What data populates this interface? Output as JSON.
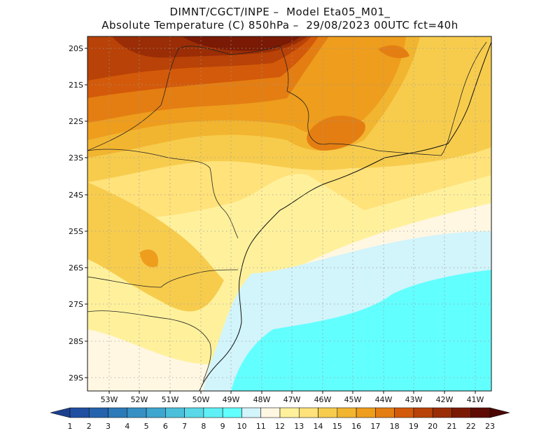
{
  "title": {
    "line1": "DIMNT/CGCT/INPE –  Model Eta05_M01_",
    "line2": "Absolute Temperature (C) 850hPa –  29/08/2023 00UTC fct=40h"
  },
  "lat_labels": [
    "20S",
    "21S",
    "22S",
    "23S",
    "24S",
    "25S",
    "26S",
    "27S",
    "28S",
    "29S"
  ],
  "lon_labels": [
    "53W",
    "52W",
    "51W",
    "50W",
    "49W",
    "48W",
    "47W",
    "46W",
    "45W",
    "44W",
    "43W",
    "42W",
    "41W"
  ],
  "colorbar": {
    "labels": [
      "1",
      "2",
      "3",
      "4",
      "5",
      "6",
      "7",
      "8",
      "9",
      "10",
      "11",
      "12",
      "13",
      "14",
      "15",
      "16",
      "17",
      "18",
      "19",
      "20",
      "21",
      "22",
      "23"
    ],
    "colors": [
      "#1b3f8f",
      "#1f4fa0",
      "#2563ad",
      "#2c7ab8",
      "#3690c4",
      "#3fa6cf",
      "#4cc0db",
      "#5ad8e8",
      "#5ff0f5",
      "#62ffff",
      "#d2f4fb",
      "#fff7e2",
      "#fff19c",
      "#ffe27a",
      "#f7cc4d",
      "#f2b530",
      "#ee9d1d",
      "#e47e12",
      "#d35a0a",
      "#b84207",
      "#9a2d05",
      "#7a1a04",
      "#5e0c03",
      "#4a0602"
    ]
  },
  "map": {
    "field_colors": {
      "t10": "#62ffff",
      "t11": "#d2f4fb",
      "t12": "#fff7e2",
      "t13": "#fff19c",
      "t14": "#ffe27a",
      "t15": "#f7cc4d",
      "t16": "#f2b530",
      "t17": "#ee9d1d",
      "t18": "#e47e12",
      "t19": "#d35a0a",
      "t20": "#b84207",
      "t21": "#9a2d05",
      "t22": "#7a1a04"
    }
  }
}
